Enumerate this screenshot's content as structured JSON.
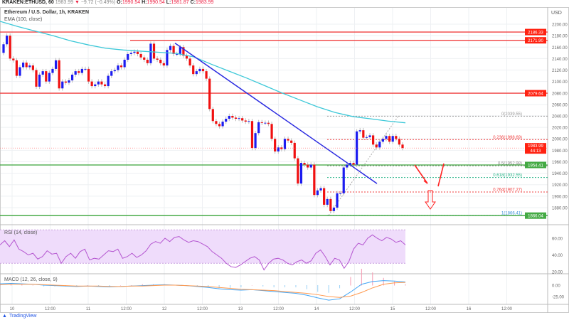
{
  "header": {
    "symbol": "KRAKEN:ETHUSD, 60",
    "last": "1983.99",
    "arrow": "▼",
    "change": "−9.72 (−0.49%)",
    "o_label": "O:",
    "o": "1990.54",
    "h_label": "H:",
    "h": "1990.54",
    "l_label": "L:",
    "l": "1981.87",
    "c_label": "C:",
    "c": "1983.99"
  },
  "legend": {
    "title": "Ethereum / U.S. Dollar, 1h, KRAKEN",
    "ema": "EMA (100, close)"
  },
  "currency": "USD",
  "rsi_label": "RSI (14, close)",
  "macd_label": "MACD (12, 26, close, 9)",
  "footer": "TradingView",
  "colors": {
    "up": "#1c1cf0",
    "down": "#f01010",
    "ema": "#3cc8d8",
    "level_red": "#f04040",
    "level_green": "#3aa53a",
    "trend": "#2a2ae0",
    "rsi": "#b455d0",
    "rsi_band": "#efdcfb",
    "macd": "#42a5f5",
    "signal": "#ff9a50"
  },
  "chart_data": {
    "type": "candlestick",
    "title": "Ethereum / U.S. Dollar, 1h, KRAKEN",
    "ylim": [
      1860,
      2210
    ],
    "y_ticks": [
      "2200.00",
      "2180.00",
      "2160.00",
      "2140.00",
      "2120.00",
      "2100.00",
      "2080.00",
      "2060.00",
      "2040.00",
      "2020.00",
      "2000.00",
      "1980.00",
      "1960.00",
      "1940.00",
      "1920.00",
      "1900.00",
      "1880.00"
    ],
    "x_ticks": [
      "10",
      "12:00",
      "11",
      "12:00",
      "12",
      "12:00",
      "13",
      "12:00",
      "14",
      "12:00",
      "15",
      "12:00",
      "16",
      "12:00"
    ],
    "first_open": 2150,
    "closes": [
      2165,
      2180,
      2140,
      2137,
      2110,
      2125,
      2133,
      2125,
      2128,
      2120,
      2091,
      2112,
      2118,
      2100,
      2115,
      2122,
      2137,
      2088,
      2100,
      2098,
      2102,
      2112,
      2118,
      2115,
      2122,
      2122,
      2100,
      2092,
      2095,
      2100,
      2095,
      2092,
      2110,
      2118,
      2120,
      2128,
      2125,
      2138,
      2148,
      2150,
      2152,
      2148,
      2142,
      2138,
      2132,
      2166,
      2140,
      2138,
      2132,
      2128,
      2155,
      2162,
      2148,
      2148,
      2160,
      2145,
      2140,
      2128,
      2113,
      2118,
      2122,
      2118,
      2105,
      2052,
      2031,
      2026,
      2022,
      2030,
      2035,
      2040,
      2037,
      2035,
      2036,
      2032,
      2030,
      2031,
      1984,
      2010,
      2029,
      2028,
      2028,
      2026,
      2000,
      1978,
      1985,
      1982,
      2000,
      1997,
      1993,
      1966,
      1922,
      1958,
      1955,
      1950,
      1955,
      1902,
      1910,
      1914,
      1885,
      1895,
      1874,
      1880,
      1905,
      1905,
      1950,
      1955,
      1958,
      1955,
      2013,
      2015,
      2002,
      2003,
      2006,
      1990,
      1985,
      1995,
      2000,
      2005,
      1995,
      2005,
      2000,
      1990,
      1983.99
    ],
    "ema_100": [
      2205,
      2196,
      2188,
      2180,
      2171,
      2164,
      2158,
      2155,
      2153,
      2151,
      2149,
      2143,
      2130,
      2118,
      2106,
      2093,
      2080,
      2068,
      2056,
      2046,
      2039,
      2035,
      2031,
      2028
    ],
    "levels": [
      {
        "label": "2186.33",
        "value": 2186.33,
        "color": "red"
      },
      {
        "label": "2171.90",
        "value": 2171.9,
        "color": "red"
      },
      {
        "label": "2079.64",
        "value": 2079.64,
        "color": "red"
      },
      {
        "label": "1954.41",
        "value": 1954.41,
        "color": "green"
      },
      {
        "label": "1866.04",
        "value": 1866.04,
        "color": "green"
      }
    ],
    "fib": [
      {
        "label": "0(2039.55)",
        "value": 2039.55,
        "color": "#999999"
      },
      {
        "label": "0.236(1998.69)",
        "value": 1998.69,
        "color": "#f04040"
      },
      {
        "label": "0.5(1952.98)",
        "value": 1952.98,
        "color": "#888888"
      },
      {
        "label": "0.618(1932.55)",
        "value": 1932.55,
        "color": "#2bb58a"
      },
      {
        "label": "0.764(1907.27)",
        "value": 1907.27,
        "color": "#f04040"
      },
      {
        "label": "1(1866.41)",
        "value": 1866.41,
        "color": "#3c8fd8"
      }
    ],
    "trendline": [
      2167,
      1922
    ],
    "current_price": {
      "label": "1983.99",
      "countdown": "44:13",
      "value": 1983.99
    },
    "rsi": {
      "ylim": [
        10,
        80
      ],
      "ticks": [
        "60.00",
        "40.00",
        "20.00"
      ],
      "band": [
        30,
        70
      ],
      "values": [
        52,
        57,
        50,
        58,
        47,
        44,
        40,
        42,
        35,
        38,
        45,
        41,
        42,
        30,
        38,
        42,
        36,
        44,
        47,
        34,
        36,
        35,
        40,
        45,
        44,
        47,
        36,
        38,
        42,
        37,
        40,
        45,
        53,
        56,
        54,
        60,
        56,
        61,
        62,
        58,
        55,
        57,
        56,
        53,
        50,
        44,
        40,
        36,
        30,
        26,
        25,
        28,
        32,
        36,
        38,
        34,
        22,
        30,
        35,
        36,
        34,
        30,
        28,
        32,
        34,
        30,
        33,
        42,
        46,
        38,
        28,
        36,
        34,
        24,
        32,
        47,
        54,
        52,
        60,
        64,
        60,
        57,
        61,
        59,
        55,
        57,
        52
      ]
    },
    "macd": {
      "ylim": [
        -40,
        20
      ],
      "ticks": [
        "0.00",
        "-25.00"
      ],
      "macd": [
        3,
        4,
        3,
        2,
        0,
        -1,
        -2,
        -3,
        -2,
        -3,
        -4,
        -3,
        -2,
        -1,
        0,
        1,
        0,
        -1,
        -3,
        -5,
        -8,
        -10,
        -11,
        -10,
        -12,
        -14,
        -16,
        -18,
        -22,
        -28,
        -33,
        -30,
        -15,
        2,
        8,
        10,
        9,
        7
      ],
      "signal": [
        1,
        2,
        2,
        2,
        1,
        0,
        -1,
        -2,
        -2,
        -2,
        -3,
        -3,
        -2,
        -2,
        -1,
        0,
        0,
        -1,
        -2,
        -3,
        -5,
        -7,
        -9,
        -10,
        -11,
        -12,
        -14,
        -16,
        -18,
        -21,
        -25,
        -27,
        -24,
        -16,
        -6,
        2,
        5,
        6
      ]
    }
  }
}
